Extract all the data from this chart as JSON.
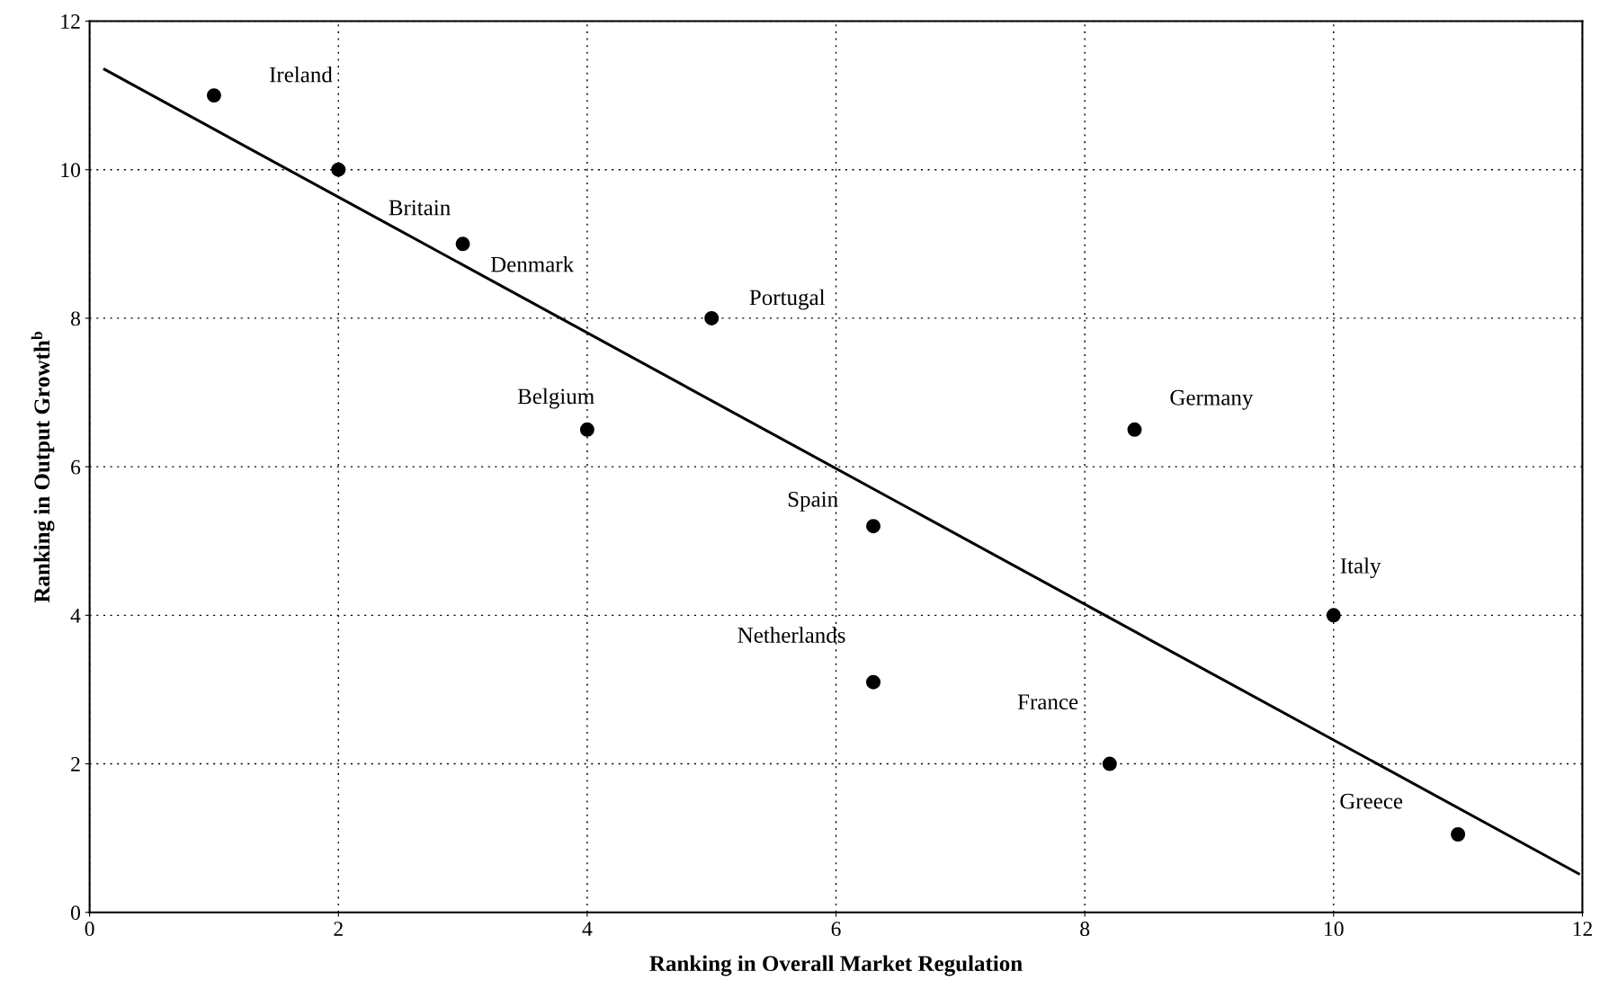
{
  "chart_data": {
    "type": "scatter",
    "xlabel": "Ranking in Overall Market Regulation",
    "ylabel": "Ranking in Output Growth$^{b}$",
    "xlim": [
      0,
      12
    ],
    "ylim": [
      0,
      12
    ],
    "xticks": [
      0,
      2,
      4,
      6,
      8,
      10,
      12
    ],
    "yticks": [
      0,
      2,
      4,
      6,
      8,
      10,
      12
    ],
    "grid": true,
    "legend": false,
    "series": [
      {
        "color": "#000000",
        "marker": "circle",
        "x": [
          1,
          2,
          3,
          5,
          4,
          8.4,
          6.3,
          6.3,
          10,
          8.2,
          11
        ],
        "values": [
          11,
          10,
          9,
          8,
          6.5,
          6.5,
          5.2,
          3.1,
          4,
          2,
          1.05
        ]
      },
      {
        "type": "line",
        "color": "#000000",
        "line_style": "solid",
        "marker": "none",
        "x": [
          0.12,
          11.97
        ],
        "values": [
          11.35,
          0.52
        ]
      }
    ],
    "annotations": [
      {
        "text": "Ireland",
        "x": 1,
        "y": 11
      },
      {
        "text": "Britain",
        "x": 2,
        "y": 10
      },
      {
        "text": "Denmark",
        "x": 3,
        "y": 9
      },
      {
        "text": "Portugal",
        "x": 5,
        "y": 8
      },
      {
        "text": "Belgium",
        "x": 4,
        "y": 6.5
      },
      {
        "text": "Germany",
        "x": 8.4,
        "y": 6.5
      },
      {
        "text": "Spain",
        "x": 6.3,
        "y": 5.2
      },
      {
        "text": "Netherlands",
        "x": 6.3,
        "y": 3.1
      },
      {
        "text": "Italy",
        "x": 10,
        "y": 4
      },
      {
        "text": "France",
        "x": 8.2,
        "y": 2
      },
      {
        "text": "Greece",
        "x": 11,
        "y": 1.05
      }
    ]
  }
}
